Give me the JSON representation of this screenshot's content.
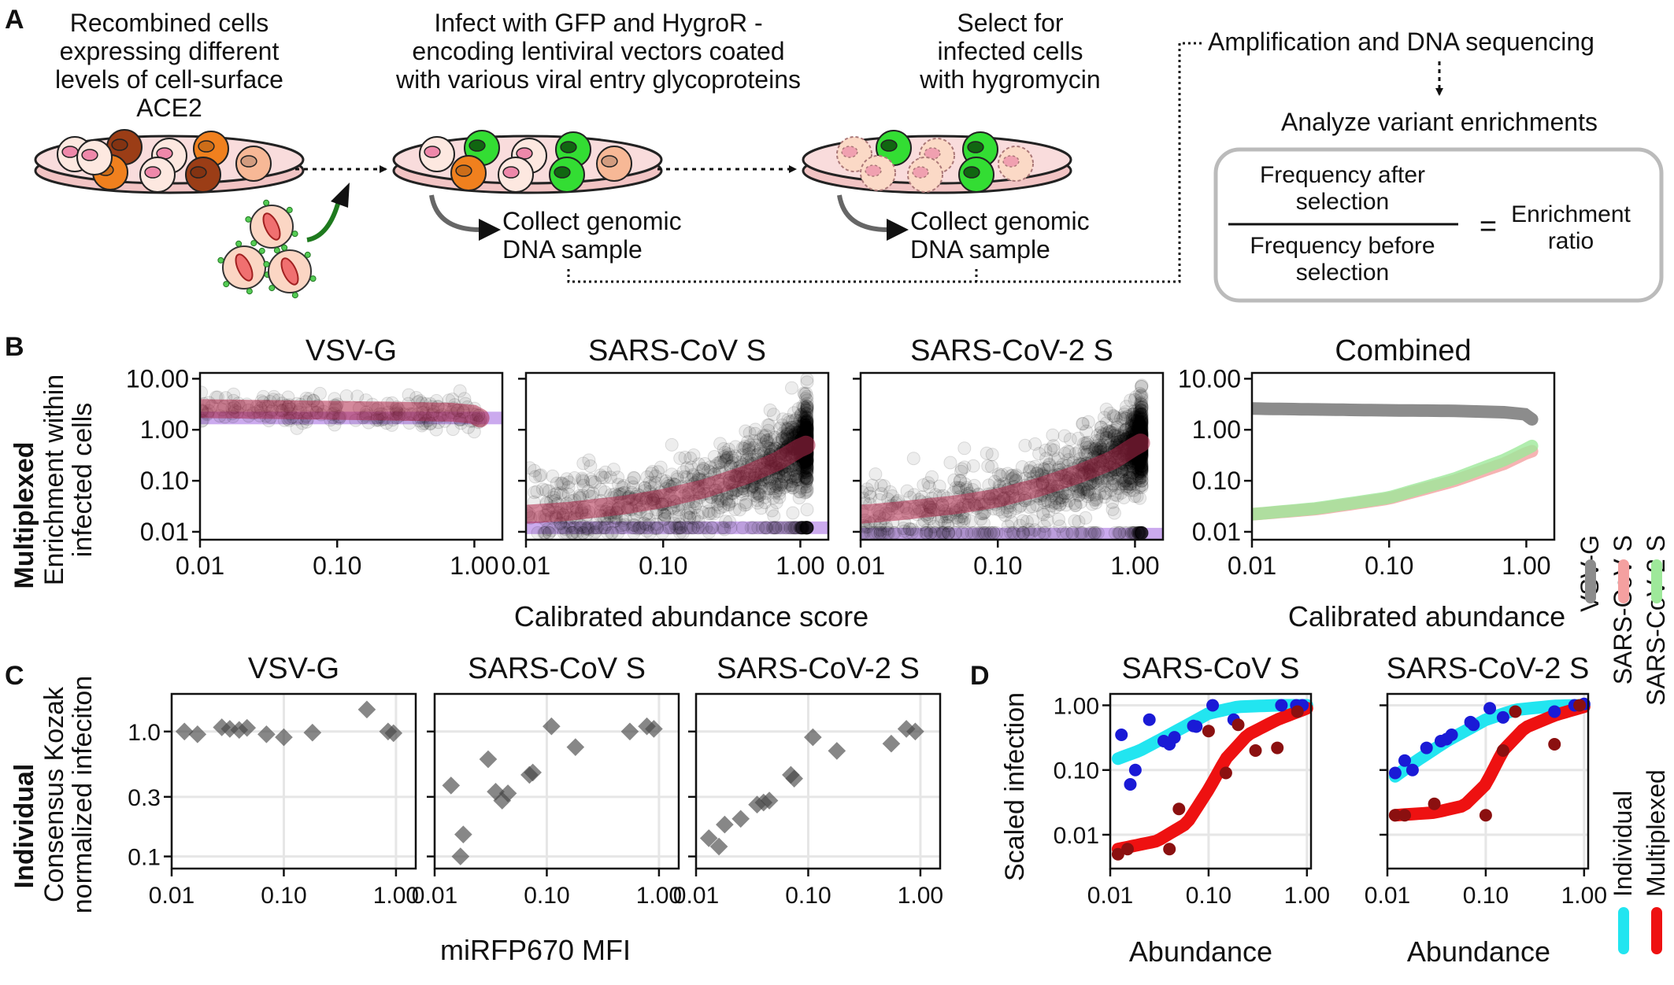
{
  "panel_a": {
    "label": "A",
    "step1": [
      "Recombined cells",
      "expressing different",
      "levels of cell-surface",
      "ACE2"
    ],
    "step2": [
      "Infect with GFP and HygroR -",
      "encoding lentiviral vectors coated",
      "with various viral entry glycoproteins"
    ],
    "step3": [
      "Select for",
      "infected cells",
      "with hygromycin"
    ],
    "collect1": [
      "Collect genomic",
      "DNA sample"
    ],
    "collect2": [
      "Collect genomic",
      "DNA sample"
    ],
    "amplification": "Amplification and DNA sequencing",
    "analyze": "Analyze variant enrichments",
    "numerator": [
      "Frequency after",
      "selection"
    ],
    "denominator": [
      "Frequency before",
      "selection"
    ],
    "equals": "=",
    "result": [
      "Enrichment",
      "ratio"
    ]
  },
  "panel_b": {
    "label": "B",
    "row_label": "Multiplexed",
    "ylabel": [
      "Enrichment within",
      "infected cells"
    ],
    "xlabel": "Calibrated abundance score",
    "xlabel_combined": "Calibrated abundance",
    "titles": [
      "VSV-G",
      "SARS-CoV S",
      "SARS-CoV-2 S",
      "Combined"
    ],
    "yticks": [
      "10.00",
      "1.00",
      "0.10",
      "0.01"
    ],
    "xticks": [
      "0.01",
      "0.10",
      "1.00"
    ],
    "legend": [
      "VSV-G",
      "SARS-CoV S",
      "SARS-CoV-2 S"
    ],
    "colors": {
      "vsv": "#8c8c8c",
      "sars1": "#f4a0a0",
      "sars2": "#9ee89a",
      "fit": "#b0284a",
      "floor": "#b98ee8"
    }
  },
  "panel_c": {
    "label": "C",
    "row_label": "Individual",
    "ylabel": [
      "Consensus Kozak",
      "normalized infeciton"
    ],
    "xlabel": "miRFP670 MFI",
    "titles": [
      "VSV-G",
      "SARS-CoV S",
      "SARS-CoV-2 S"
    ],
    "yticks": [
      "1.0",
      "0.3",
      "0.1"
    ],
    "xticks": [
      "0.01",
      "0.10",
      "1.00"
    ]
  },
  "panel_d": {
    "label": "D",
    "ylabel": "Scaled infection",
    "xlabel": "Abundance",
    "titles": [
      "SARS-CoV S",
      "SARS-CoV-2 S"
    ],
    "yticks": [
      "1.00",
      "0.10",
      "0.01"
    ],
    "xticks": [
      "0.01",
      "0.10",
      "1.00"
    ],
    "legend": [
      "Individual",
      "Multiplexed"
    ],
    "colors": {
      "individual": "#22e5f0",
      "multiplexed": "#ee1111",
      "ind_pts": "#1a1ad6",
      "mult_pts": "#8b1010"
    }
  },
  "chart_data": [
    {
      "type": "scatter",
      "title": "VSV-G",
      "xlabel": "Calibrated abundance score",
      "ylabel": "Enrichment within infected cells",
      "x_scale": "log",
      "y_scale": "log",
      "xlim": [
        0.01,
        1.6
      ],
      "ylim": [
        0.007,
        13
      ],
      "fit_line": {
        "x": [
          0.01,
          0.03,
          0.1,
          0.3,
          0.7,
          1.0,
          1.1
        ],
        "y": [
          2.6,
          2.5,
          2.4,
          2.3,
          2.2,
          2.0,
          1.7
        ]
      },
      "floor": 1.7
    },
    {
      "type": "scatter",
      "title": "SARS-CoV S",
      "xlabel": "Calibrated abundance score",
      "ylabel": "Enrichment within infected cells",
      "x_scale": "log",
      "y_scale": "log",
      "xlim": [
        0.01,
        1.6
      ],
      "ylim": [
        0.007,
        13
      ],
      "fit_line": {
        "x": [
          0.01,
          0.02,
          0.05,
          0.1,
          0.2,
          0.4,
          0.7,
          1.0,
          1.1
        ],
        "y": [
          0.022,
          0.025,
          0.033,
          0.045,
          0.07,
          0.13,
          0.25,
          0.45,
          0.5
        ]
      },
      "floor": 0.012
    },
    {
      "type": "scatter",
      "title": "SARS-CoV-2 S",
      "xlabel": "Calibrated abundance score",
      "ylabel": "Enrichment within infected cells",
      "x_scale": "log",
      "y_scale": "log",
      "xlim": [
        0.01,
        1.6
      ],
      "ylim": [
        0.007,
        13
      ],
      "fit_line": {
        "x": [
          0.01,
          0.02,
          0.05,
          0.1,
          0.2,
          0.4,
          0.7,
          1.0,
          1.1
        ],
        "y": [
          0.022,
          0.026,
          0.034,
          0.046,
          0.075,
          0.14,
          0.26,
          0.48,
          0.55
        ]
      },
      "floor": 0.009
    },
    {
      "type": "line",
      "title": "Combined",
      "xlabel": "Calibrated abundance",
      "ylabel": "Enrichment within infected cells",
      "x_scale": "log",
      "y_scale": "log",
      "xlim": [
        0.01,
        1.6
      ],
      "ylim": [
        0.007,
        13
      ],
      "x": [
        0.01,
        0.03,
        0.1,
        0.3,
        0.7,
        1.0,
        1.1
      ],
      "series": [
        {
          "name": "VSV-G",
          "values": [
            2.6,
            2.5,
            2.4,
            2.35,
            2.2,
            2.0,
            1.6
          ]
        },
        {
          "name": "SARS-CoV S",
          "values": [
            0.022,
            0.028,
            0.045,
            0.1,
            0.22,
            0.35,
            0.38
          ]
        },
        {
          "name": "SARS-CoV-2 S",
          "values": [
            0.022,
            0.029,
            0.047,
            0.11,
            0.26,
            0.42,
            0.48
          ]
        }
      ]
    },
    {
      "type": "scatter",
      "title": "VSV-G",
      "xlabel": "miRFP670 MFI",
      "ylabel": "Consensus Kozak normalized infeciton",
      "x_scale": "log",
      "y_scale": "log",
      "xlim": [
        0.01,
        1.5
      ],
      "ylim": [
        0.08,
        2.0
      ],
      "x": [
        0.013,
        0.017,
        0.028,
        0.033,
        0.04,
        0.047,
        0.07,
        0.1,
        0.18,
        0.55,
        0.85,
        0.95
      ],
      "y": [
        1.0,
        0.95,
        1.08,
        1.05,
        1.03,
        1.07,
        0.95,
        0.9,
        0.98,
        1.5,
        1.0,
        0.97
      ]
    },
    {
      "type": "scatter",
      "title": "SARS-CoV S",
      "xlabel": "miRFP670 MFI",
      "ylabel": "Consensus Kozak normalized infeciton",
      "x_scale": "log",
      "y_scale": "log",
      "xlim": [
        0.01,
        1.5
      ],
      "ylim": [
        0.08,
        2.0
      ],
      "x": [
        0.014,
        0.017,
        0.018,
        0.03,
        0.035,
        0.04,
        0.045,
        0.07,
        0.075,
        0.11,
        0.18,
        0.55,
        0.78,
        0.9
      ],
      "y": [
        0.37,
        0.1,
        0.15,
        0.6,
        0.33,
        0.28,
        0.32,
        0.45,
        0.47,
        1.1,
        0.75,
        1.0,
        1.1,
        1.05
      ]
    },
    {
      "type": "scatter",
      "title": "SARS-CoV-2 S",
      "xlabel": "miRFP670 MFI",
      "ylabel": "Consensus Kozak normalized infeciton",
      "x_scale": "log",
      "y_scale": "log",
      "xlim": [
        0.01,
        1.5
      ],
      "ylim": [
        0.08,
        2.0
      ],
      "x": [
        0.013,
        0.016,
        0.018,
        0.025,
        0.035,
        0.04,
        0.045,
        0.07,
        0.075,
        0.11,
        0.18,
        0.55,
        0.75,
        0.9
      ],
      "y": [
        0.14,
        0.12,
        0.18,
        0.2,
        0.26,
        0.27,
        0.28,
        0.45,
        0.42,
        0.9,
        0.7,
        0.8,
        1.05,
        1.0
      ]
    },
    {
      "type": "scatter",
      "title": "SARS-CoV S",
      "xlabel": "Abundance",
      "ylabel": "Scaled infection",
      "x_scale": "log",
      "y_scale": "log",
      "xlim": [
        0.01,
        1.1
      ],
      "ylim": [
        0.003,
        1.5
      ],
      "series": [
        {
          "name": "Individual",
          "x": [
            0.013,
            0.016,
            0.018,
            0.025,
            0.035,
            0.04,
            0.045,
            0.07,
            0.075,
            0.11,
            0.18,
            0.55,
            0.78,
            0.9
          ],
          "y": [
            0.35,
            0.06,
            0.1,
            0.6,
            0.28,
            0.25,
            0.32,
            0.48,
            0.47,
            1.0,
            0.6,
            1.0,
            1.0,
            1.0
          ]
        },
        {
          "name": "Multiplexed",
          "x": [
            0.012,
            0.015,
            0.04,
            0.05,
            0.1,
            0.15,
            0.2,
            0.3,
            0.5,
            0.8
          ],
          "y": [
            0.005,
            0.006,
            0.006,
            0.025,
            0.4,
            0.09,
            0.5,
            0.2,
            0.22,
            0.8
          ]
        }
      ],
      "fit_individual": {
        "x": [
          0.012,
          0.02,
          0.04,
          0.1,
          0.2,
          0.5,
          1.0
        ],
        "y": [
          0.15,
          0.2,
          0.35,
          0.75,
          0.95,
          1.0,
          1.0
        ]
      },
      "fit_multiplexed": {
        "x": [
          0.012,
          0.03,
          0.06,
          0.1,
          0.15,
          0.25,
          0.5,
          1.0
        ],
        "y": [
          0.006,
          0.008,
          0.015,
          0.05,
          0.15,
          0.35,
          0.6,
          0.9
        ]
      }
    },
    {
      "type": "scatter",
      "title": "SARS-CoV-2 S",
      "xlabel": "Abundance",
      "ylabel": "Scaled infection",
      "x_scale": "log",
      "y_scale": "log",
      "xlim": [
        0.01,
        1.1
      ],
      "ylim": [
        0.003,
        1.5
      ],
      "series": [
        {
          "name": "Individual",
          "x": [
            0.012,
            0.015,
            0.018,
            0.025,
            0.035,
            0.04,
            0.045,
            0.07,
            0.075,
            0.11,
            0.15,
            0.5,
            0.8,
            1.0
          ],
          "y": [
            0.09,
            0.14,
            0.1,
            0.22,
            0.28,
            0.3,
            0.35,
            0.55,
            0.5,
            0.9,
            0.65,
            0.8,
            1.0,
            1.05
          ]
        },
        {
          "name": "Multiplexed",
          "x": [
            0.012,
            0.015,
            0.03,
            0.1,
            0.15,
            0.2,
            0.5,
            0.9
          ],
          "y": [
            0.02,
            0.02,
            0.03,
            0.02,
            0.2,
            0.8,
            0.25,
            1.0
          ]
        }
      ],
      "fit_individual": {
        "x": [
          0.012,
          0.02,
          0.04,
          0.1,
          0.2,
          0.5,
          1.0
        ],
        "y": [
          0.08,
          0.14,
          0.28,
          0.6,
          0.85,
          0.98,
          1.0
        ]
      },
      "fit_multiplexed": {
        "x": [
          0.012,
          0.03,
          0.06,
          0.1,
          0.15,
          0.25,
          0.5,
          1.0
        ],
        "y": [
          0.02,
          0.022,
          0.028,
          0.06,
          0.2,
          0.45,
          0.7,
          0.95
        ]
      }
    }
  ]
}
